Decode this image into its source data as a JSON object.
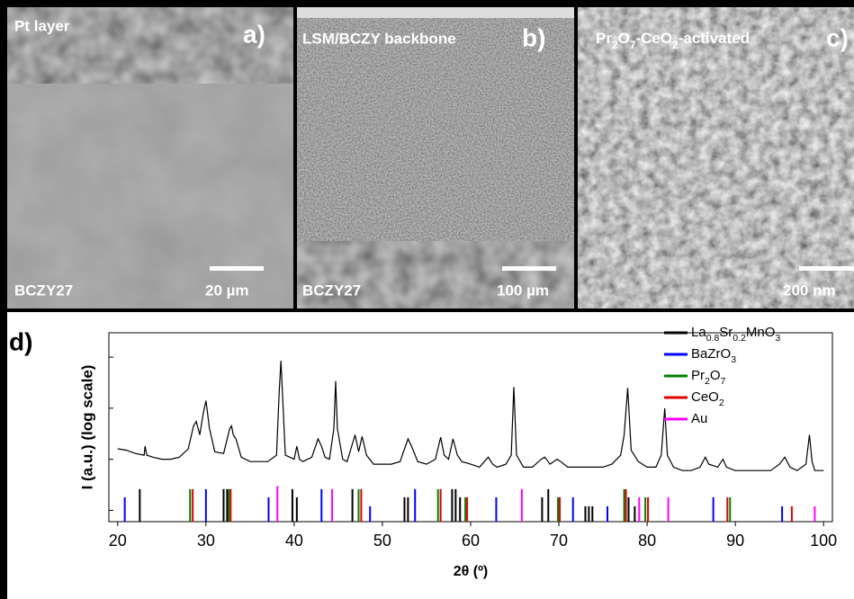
{
  "panels": [
    {
      "title": "Pt layer",
      "label": "a)",
      "sample": "BCZY27",
      "scale": "20 µm"
    },
    {
      "title": "LSM/BCZY backbone",
      "label": "b)",
      "sample": "BCZY27",
      "scale": "100 µm"
    },
    {
      "title": "Pr2O7-CeO2-activated",
      "label": "c)",
      "scale": "200 nm"
    }
  ],
  "chart_data": {
    "type": "line",
    "label": "d)",
    "xlabel": "2θ (º)",
    "ylabel": "I (a.u.) (log scale)",
    "xlim": [
      19,
      101
    ],
    "xticks": [
      20,
      30,
      40,
      50,
      60,
      70,
      80,
      90,
      100
    ],
    "ylim": [
      0.6,
      3000
    ],
    "yticks": [
      1,
      10,
      100,
      1000
    ],
    "log_y": true,
    "color": "#000000",
    "x": [
      20,
      21,
      22,
      23,
      23.1,
      23.3,
      24,
      25,
      26,
      27,
      28,
      28.6,
      28.9,
      29.3,
      29.7,
      30,
      30.4,
      31,
      32,
      32.7,
      32.9,
      33.1,
      33.4,
      34,
      35,
      36,
      37,
      38,
      38.3,
      38.5,
      38.7,
      39,
      40,
      40.3,
      40.6,
      41,
      42,
      42.7,
      43.1,
      43.5,
      44,
      44.5,
      44.7,
      44.9,
      45.5,
      46,
      46.9,
      47.3,
      47.7,
      48.2,
      49,
      50,
      51,
      52,
      52.9,
      53.3,
      54,
      55,
      56,
      56.6,
      57,
      57.5,
      58,
      58.5,
      59,
      60,
      61,
      62,
      62.5,
      63,
      64,
      64.6,
      64.9,
      65.2,
      66,
      67,
      68,
      68.4,
      69,
      69.8,
      70.2,
      71,
      72,
      73,
      74,
      75,
      76,
      77,
      77.4,
      77.8,
      78.2,
      79,
      80,
      81,
      81.6,
      82,
      82.3,
      83,
      84,
      85,
      86,
      86.6,
      87,
      88,
      88.6,
      89,
      90,
      91,
      92,
      93,
      94,
      95,
      95.6,
      96.2,
      97,
      98,
      98.4,
      98.7,
      99,
      100
    ],
    "values": [
      16,
      15,
      13,
      12,
      18,
      12,
      11,
      10,
      10,
      11,
      16,
      45,
      55,
      30,
      80,
      140,
      40,
      14,
      13,
      40,
      45,
      30,
      25,
      11,
      9,
      9,
      9,
      12,
      200,
      850,
      150,
      12,
      10,
      18,
      10,
      9,
      11,
      25,
      18,
      11,
      10,
      40,
      340,
      40,
      10,
      9,
      30,
      14,
      28,
      12,
      8,
      8,
      8,
      9,
      25,
      18,
      9,
      8,
      10,
      27,
      12,
      10,
      25,
      12,
      9,
      8,
      7,
      11,
      8,
      7,
      8,
      12,
      260,
      12,
      7,
      7,
      10,
      11,
      8,
      10,
      9,
      7,
      7,
      7,
      7,
      7,
      8,
      12,
      30,
      250,
      15,
      9,
      7,
      7,
      12,
      100,
      12,
      7,
      6,
      6,
      7,
      11,
      8,
      7,
      10,
      7,
      6,
      6,
      6,
      6,
      6,
      8,
      11,
      7,
      6,
      8,
      30,
      9,
      6,
      6
    ],
    "references": [
      {
        "name": "La0.8Sr0.2MnO3",
        "color": "#000000",
        "x": [
          22.5,
          32.0,
          32.4,
          39.8,
          40.3,
          46.6,
          52.5,
          52.9,
          57.9,
          58.3,
          58.8,
          68.1,
          68.8,
          73.0,
          73.4,
          73.8,
          77.9,
          78.6
        ],
        "values": [
          2.6,
          2.6,
          2.6,
          2.6,
          1.8,
          2.6,
          1.8,
          1.8,
          2.6,
          2.6,
          1.8,
          1.8,
          2.6,
          1.2,
          1.2,
          1.2,
          1.8,
          1.2
        ]
      },
      {
        "name": "BaZrO3",
        "color": "#0000ff",
        "x": [
          20.8,
          30.0,
          37.1,
          43.1,
          48.6,
          53.7,
          62.9,
          71.6,
          75.5,
          87.5,
          95.3
        ],
        "values": [
          1.8,
          2.6,
          1.8,
          2.6,
          1.2,
          2.6,
          1.8,
          1.8,
          1.2,
          1.8,
          1.2
        ]
      },
      {
        "name": "Pr2O7",
        "color": "#008000",
        "x": [
          28.2,
          32.6,
          47.3,
          56.3,
          59.4,
          69.9,
          77.4,
          79.8,
          89.4
        ],
        "values": [
          2.6,
          2.6,
          2.6,
          2.6,
          1.8,
          1.8,
          2.6,
          1.8,
          1.8
        ]
      },
      {
        "name": "CeO2",
        "color": "#e00000",
        "x": [
          28.5,
          32.8,
          47.6,
          56.6,
          59.6,
          70.1,
          77.6,
          80.1,
          89.1,
          96.4
        ],
        "values": [
          2.6,
          2.6,
          2.6,
          2.6,
          1.8,
          1.8,
          2.6,
          1.8,
          1.8,
          1.2
        ]
      },
      {
        "name": "Au",
        "color": "#ff00ff",
        "x": [
          38.1,
          44.3,
          65.8,
          79.1,
          82.4,
          99.0
        ],
        "values": [
          3,
          2.6,
          2.6,
          1.8,
          1.8,
          1.2
        ]
      }
    ]
  }
}
